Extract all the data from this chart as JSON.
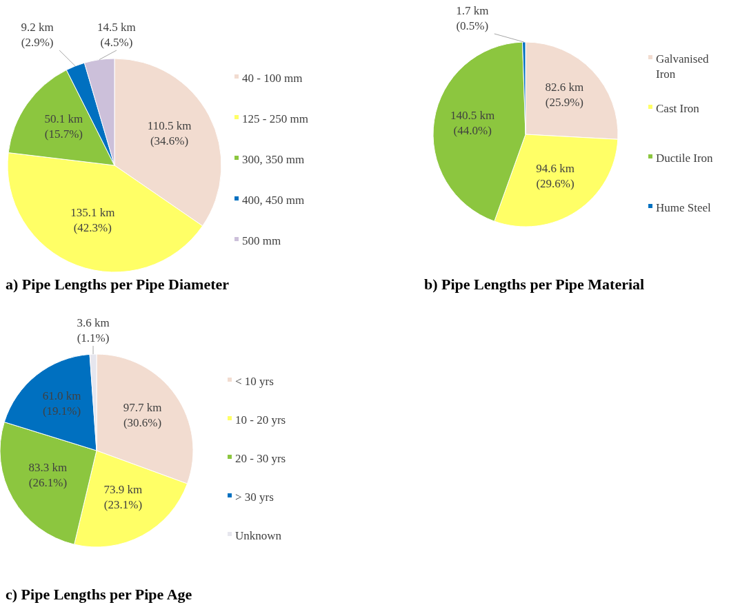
{
  "chart_data": [
    {
      "type": "pie",
      "title": "a) Pipe Lengths per Pipe Diameter",
      "legend": "right",
      "categories": [
        "40 - 100 mm",
        "125 - 250 mm",
        "300, 350 mm",
        "400, 450 mm",
        "500 mm"
      ],
      "values": [
        110.5,
        135.1,
        50.1,
        9.2,
        14.5
      ],
      "value_labels": [
        "110.5 km\n(34.6%)",
        "135.1 km\n(42.3%)",
        "50.1 km\n(15.7%)",
        "9.2 km\n(2.9%)",
        "14.5 km\n(4.5%)"
      ],
      "colors": [
        "#f2dcd0",
        "#ffff66",
        "#8cc63f",
        "#0070c0",
        "#ccc0da"
      ]
    },
    {
      "type": "pie",
      "title": "b) Pipe Lengths per Pipe Material",
      "legend": "right",
      "categories": [
        "Galvanised Iron",
        "Cast Iron",
        "Ductile Iron",
        "Hume Steel"
      ],
      "values": [
        82.6,
        94.6,
        140.5,
        1.7
      ],
      "value_labels": [
        "82.6 km\n(25.9%)",
        "94.6 km\n(29.6%)",
        "140.5 km\n(44.0%)",
        "1.7 km\n(0.5%)"
      ],
      "colors": [
        "#f2dcd0",
        "#ffff66",
        "#8cc63f",
        "#0070c0"
      ]
    },
    {
      "type": "pie",
      "title": "c) Pipe Lengths per Pipe Age",
      "legend": "right",
      "categories": [
        "< 10 yrs",
        "10 - 20 yrs",
        "20 - 30 yrs",
        "> 30 yrs",
        "Unknown"
      ],
      "values": [
        97.7,
        73.9,
        83.3,
        61.0,
        3.6
      ],
      "value_labels": [
        "97.7 km\n(30.6%)",
        "73.9 km\n(23.1%)",
        "83.3 km\n(26.1%)",
        "61.0 km\n(19.1%)",
        "3.6 km\n(1.1%)"
      ],
      "colors": [
        "#f2dcd0",
        "#ffff66",
        "#8cc63f",
        "#0070c0",
        "#e6e6ee"
      ]
    }
  ]
}
